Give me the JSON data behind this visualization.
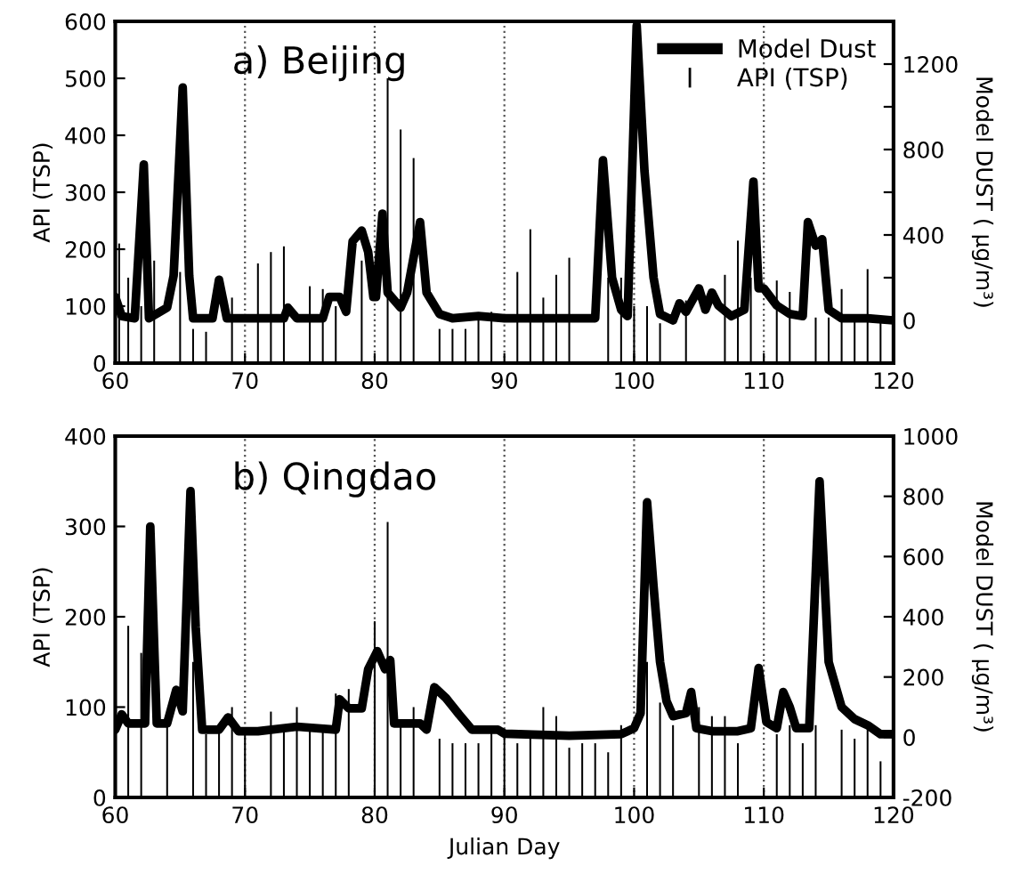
{
  "chart_data": [
    {
      "type": "bar",
      "title": "a) Beijing",
      "ylabel": "API (TSP)",
      "y2label": "Model DUST ( μg/m³)",
      "xlim": [
        60,
        120
      ],
      "xticks": [
        60,
        70,
        80,
        90,
        100,
        110,
        120
      ],
      "ylim": [
        0,
        600
      ],
      "yticks": [
        0,
        100,
        200,
        300,
        400,
        500,
        600
      ],
      "y2lim": [
        -200,
        1400
      ],
      "y2ticks": [
        0,
        {
          "value": 200,
          "label": null
        },
        400,
        {
          "value": 600,
          "label": null
        },
        800,
        {
          "value": 1000,
          "label": null
        },
        1200
      ],
      "grid": "x",
      "legend": "top right",
      "series": [
        {
          "name": "Model Dust",
          "type": "line",
          "axis": "y2",
          "color": "#000000",
          "x": [
            60,
            60.5,
            61.5,
            62.2,
            62.6,
            64,
            64.5,
            65.2,
            65.7,
            66,
            67.5,
            68,
            68.6,
            70,
            73,
            73.3,
            74,
            76,
            76.5,
            77.3,
            77.8,
            78.3,
            79,
            79.5,
            79.9,
            80.1,
            80.6,
            81,
            82,
            82.5,
            83.5,
            84,
            85,
            86,
            88,
            90,
            92,
            95,
            97,
            97.6,
            98.3,
            99,
            99.5,
            100.2,
            100.8,
            101.5,
            102,
            103,
            103.5,
            104,
            105,
            105.5,
            106,
            106.5,
            107.5,
            108.5,
            109.2,
            109.6,
            110,
            111,
            112,
            113,
            113.4,
            114,
            114.5,
            115,
            116,
            118,
            120
          ],
          "values": [
            110,
            20,
            10,
            730,
            10,
            60,
            210,
            1090,
            210,
            10,
            10,
            190,
            10,
            10,
            10,
            60,
            10,
            10,
            110,
            110,
            40,
            370,
            420,
            320,
            110,
            110,
            500,
            130,
            60,
            130,
            460,
            130,
            30,
            10,
            20,
            10,
            10,
            10,
            10,
            750,
            200,
            50,
            20,
            1380,
            700,
            200,
            30,
            0,
            80,
            40,
            150,
            50,
            130,
            70,
            20,
            50,
            650,
            150,
            150,
            70,
            30,
            20,
            460,
            350,
            380,
            50,
            10,
            10,
            0
          ]
        },
        {
          "name": "API (TSP)",
          "color": "#000000",
          "x": [
            60.3,
            61,
            62,
            63,
            65,
            66,
            67,
            69,
            71,
            72,
            73,
            75,
            76,
            77,
            79,
            81,
            82,
            83,
            85,
            86,
            87,
            88,
            89,
            91,
            92,
            93,
            94,
            95,
            98,
            99,
            100,
            101,
            102,
            104,
            107,
            108,
            109,
            111,
            112,
            114,
            115,
            116,
            117,
            118,
            119
          ],
          "values": [
            210,
            150,
            100,
            180,
            160,
            60,
            55,
            115,
            175,
            195,
            205,
            135,
            130,
            100,
            180,
            500,
            410,
            360,
            60,
            60,
            60,
            80,
            90,
            160,
            235,
            115,
            155,
            185,
            150,
            150,
            100,
            100,
            70,
            110,
            155,
            215,
            150,
            145,
            125,
            80,
            80,
            130,
            80,
            165,
            75
          ]
        }
      ]
    },
    {
      "type": "bar",
      "title": "b) Qingdao",
      "xlabel": "Julian Day",
      "ylabel": "API (TSP)",
      "y2label": "Model DUST ( μg/m³)",
      "xlim": [
        60,
        120
      ],
      "xticks": [
        60,
        70,
        80,
        90,
        100,
        110,
        120
      ],
      "ylim": [
        0,
        400
      ],
      "yticks": [
        0,
        100,
        200,
        300,
        400
      ],
      "y2lim": [
        -200,
        1000
      ],
      "y2ticks": [
        -200,
        0,
        200,
        400,
        600,
        800,
        1000
      ],
      "grid": "x",
      "series": [
        {
          "type": "line",
          "axis": "y2",
          "color": "#000000",
          "x": [
            60,
            60.5,
            61,
            62.3,
            62.7,
            63.2,
            64,
            64.7,
            65.2,
            65.8,
            66.2,
            66.7,
            68,
            68.7,
            69.5,
            71,
            74,
            77,
            77.3,
            78,
            79,
            79.5,
            80.2,
            80.8,
            81.2,
            81.5,
            83.5,
            84,
            84.6,
            85.5,
            86.5,
            87.5,
            89.5,
            90,
            95,
            99,
            99.5,
            100,
            100.5,
            101,
            101.5,
            102,
            102.5,
            103,
            104,
            104.4,
            104.8,
            106,
            108,
            109,
            109.6,
            110.2,
            111,
            111.5,
            112,
            112.5,
            113.5,
            114.3,
            115,
            116,
            117,
            118,
            119,
            120
          ],
          "values": [
            25,
            76,
            46,
            46,
            700,
            46,
            46,
            157,
            86,
            817,
            366,
            25,
            25,
            66,
            20,
            20,
            35,
            25,
            126,
            96,
            96,
            226,
            286,
            226,
            256,
            46,
            46,
            25,
            166,
            130,
            76,
            25,
            25,
            12,
            5,
            10,
            20,
            30,
            80,
            780,
            500,
            250,
            120,
            70,
            80,
            150,
            30,
            20,
            20,
            30,
            230,
            50,
            30,
            150,
            100,
            30,
            30,
            850,
            250,
            100,
            60,
            40,
            10,
            10
          ]
        },
        {
          "color": "#000000",
          "x": [
            61,
            62,
            64,
            66,
            67,
            68,
            69,
            70,
            72,
            73,
            74,
            75,
            76,
            77,
            78,
            80,
            81,
            82,
            83,
            85,
            86,
            87,
            88,
            89,
            90,
            91,
            92,
            93,
            94,
            95,
            96,
            97,
            98,
            99,
            101,
            102,
            103,
            105,
            106,
            107,
            108,
            111,
            112,
            113,
            114,
            116,
            117,
            118,
            119
          ],
          "values": [
            190,
            160,
            80,
            150,
            70,
            75,
            100,
            70,
            95,
            75,
            100,
            75,
            75,
            115,
            120,
            195,
            305,
            80,
            100,
            65,
            60,
            60,
            60,
            75,
            70,
            60,
            65,
            100,
            90,
            55,
            60,
            60,
            50,
            80,
            150,
            105,
            80,
            100,
            90,
            90,
            60,
            70,
            80,
            60,
            80,
            75,
            65,
            75,
            40
          ]
        }
      ]
    }
  ]
}
